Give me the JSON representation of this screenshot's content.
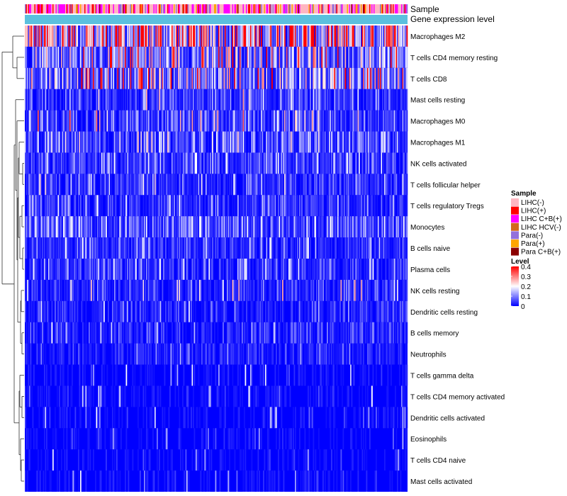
{
  "chart_data": {
    "type": "heatmap",
    "title": "",
    "annotation_tracks": [
      "Sample",
      "Gene expression level"
    ],
    "rows": [
      "Macrophages M2",
      "T cells CD4 memory resting",
      "T cells CD8",
      "Mast cells resting",
      "Macrophages M0",
      "Macrophages M1",
      "NK cells activated",
      "T cells follicular helper",
      "T cells regulatory  Tregs",
      "Monocytes",
      "B cells naive",
      "Plasma cells",
      "NK cells resting",
      "Dendritic cells resting",
      "B cells memory",
      "Neutrophils",
      "T cells gamma delta",
      "T cells CD4 memory activated",
      "Dendritic cells activated",
      "Eosinophils",
      "T cells CD4 naive",
      "Mast cells activated"
    ],
    "row_mean_levels": [
      0.24,
      0.12,
      0.12,
      0.04,
      0.05,
      0.06,
      0.05,
      0.04,
      0.04,
      0.07,
      0.04,
      0.04,
      0.03,
      0.03,
      0.03,
      0.025,
      0.01,
      0.01,
      0.01,
      0.01,
      0.01,
      0.01
    ],
    "row_max_levels": [
      0.4,
      0.4,
      0.4,
      0.3,
      0.4,
      0.25,
      0.2,
      0.25,
      0.2,
      0.2,
      0.2,
      0.2,
      0.3,
      0.2,
      0.2,
      0.15,
      0.2,
      0.2,
      0.2,
      0.15,
      0.2,
      0.2
    ],
    "column_count": 360,
    "legends": {
      "sample": {
        "title": "Sample",
        "items": [
          {
            "label": "LIHC(-)",
            "color": "#FFB6C1"
          },
          {
            "label": "LIHC(+)",
            "color": "#FF0000"
          },
          {
            "label": "LIHC C+B(+)",
            "color": "#FF00FF"
          },
          {
            "label": "LIHC HCV(-)",
            "color": "#D2691E"
          },
          {
            "label": "Para(-)",
            "color": "#9370DB"
          },
          {
            "label": "Para(+)",
            "color": "#FFA500"
          },
          {
            "label": "Para C+B(+)",
            "color": "#8B0000"
          }
        ],
        "sample_weights": [
          0.42,
          0.16,
          0.22,
          0.03,
          0.1,
          0.04,
          0.03
        ]
      },
      "level": {
        "title": "Level",
        "ticks": [
          "0.4",
          "0.3",
          "0.2",
          "0.1",
          "0"
        ],
        "tick_values": [
          0.4,
          0.3,
          0.2,
          0.1,
          0
        ],
        "range": [
          0,
          0.4
        ],
        "colors": [
          "#0000FF",
          "#FFFFFF",
          "#FF0000"
        ]
      }
    },
    "gene_expression_color": "#5BC0DE",
    "dendrogram": true
  }
}
